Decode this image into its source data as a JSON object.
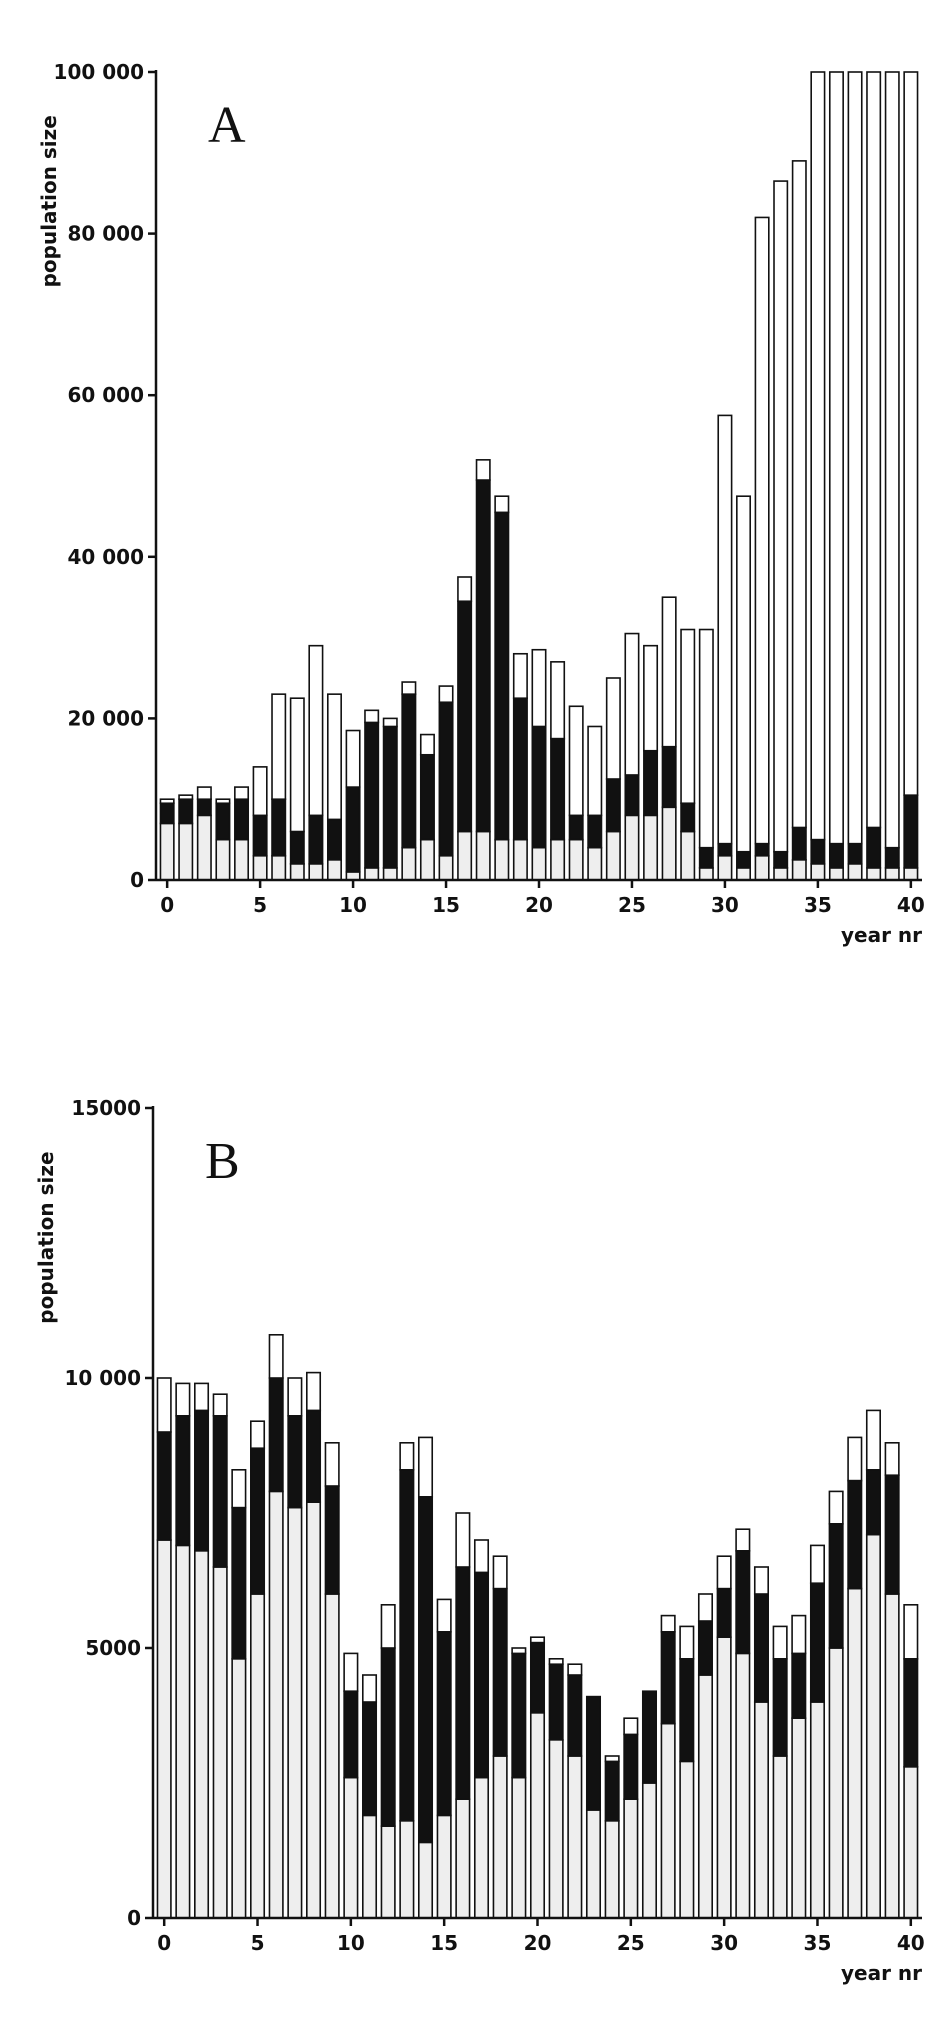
{
  "chart_data": [
    {
      "type": "bar",
      "stacked": true,
      "label": "A",
      "ylabel": "population size",
      "xlabel": "year nr",
      "x": [
        0,
        1,
        2,
        3,
        4,
        5,
        6,
        7,
        8,
        9,
        10,
        11,
        12,
        13,
        14,
        15,
        16,
        17,
        18,
        19,
        20,
        21,
        22,
        23,
        24,
        25,
        26,
        27,
        28,
        29,
        30,
        31,
        32,
        33,
        34,
        35,
        36,
        37,
        38,
        39,
        40
      ],
      "series": [
        {
          "color": "#eeeeee",
          "values": [
            7000,
            7000,
            8000,
            5000,
            5000,
            3000,
            3000,
            2000,
            2000,
            2500,
            1000,
            1500,
            1500,
            4000,
            5000,
            3000,
            6000,
            6000,
            5000,
            5000,
            4000,
            5000,
            5000,
            4000,
            6000,
            8000,
            8000,
            9000,
            6000,
            1500,
            3000,
            1500,
            3000,
            1500,
            2500,
            2000,
            1500,
            2000,
            1500,
            1500,
            1500
          ]
        },
        {
          "color": "#111111",
          "values": [
            2500,
            3000,
            2000,
            4500,
            5000,
            5000,
            7000,
            4000,
            6000,
            5000,
            10500,
            18000,
            17500,
            19000,
            10500,
            19000,
            28500,
            43500,
            40500,
            17500,
            15000,
            12500,
            3000,
            4000,
            6500,
            5000,
            8000,
            7500,
            3500,
            2500,
            1500,
            2000,
            1500,
            2000,
            4000,
            3000,
            3000,
            2500,
            5000,
            2500,
            9000
          ]
        },
        {
          "color": "#ffffff",
          "values": [
            500,
            500,
            1500,
            500,
            1500,
            6000,
            13000,
            16500,
            21000,
            15500,
            7000,
            1500,
            1000,
            1500,
            2500,
            2000,
            3000,
            2500,
            2000,
            5500,
            9500,
            9500,
            13500,
            11000,
            12500,
            17500,
            13000,
            18500,
            21500,
            27000,
            53000,
            44000,
            77500,
            83000,
            82500,
            95000,
            95500,
            95500,
            93500,
            96000,
            89500
          ]
        }
      ],
      "xlim": [
        -0.6,
        40.6
      ],
      "ylim": [
        0,
        100000
      ],
      "xticks": [
        0,
        5,
        10,
        15,
        20,
        25,
        30,
        35,
        40
      ],
      "yticks": [
        0,
        {
          "value": 20000,
          "label": "20 000"
        },
        {
          "value": 40000,
          "label": "40 000"
        },
        {
          "value": 60000,
          "label": "60 000"
        },
        {
          "value": 80000,
          "label": "80 000"
        },
        {
          "value": 100000,
          "label": "100 000"
        }
      ]
    },
    {
      "type": "bar",
      "stacked": true,
      "label": "B",
      "ylabel": "population size",
      "xlabel": "year nr",
      "x": [
        0,
        1,
        2,
        3,
        4,
        5,
        6,
        7,
        8,
        9,
        10,
        11,
        12,
        13,
        14,
        15,
        16,
        17,
        18,
        19,
        20,
        21,
        22,
        23,
        24,
        25,
        26,
        27,
        28,
        29,
        30,
        31,
        32,
        33,
        34,
        35,
        36,
        37,
        38,
        39,
        40
      ],
      "series": [
        {
          "color": "#eeeeee",
          "values": [
            7000,
            6900,
            6800,
            6500,
            4800,
            6000,
            7900,
            7600,
            7700,
            6000,
            2600,
            1900,
            1700,
            1800,
            1400,
            1900,
            2200,
            2600,
            3000,
            2600,
            3800,
            3300,
            3000,
            2000,
            1800,
            2200,
            2500,
            3600,
            2900,
            4500,
            5200,
            4900,
            4000,
            3000,
            3700,
            4000,
            5000,
            6100,
            7100,
            6000,
            2800
          ]
        },
        {
          "color": "#111111",
          "values": [
            2000,
            2400,
            2600,
            2800,
            2800,
            2700,
            2100,
            1700,
            1700,
            2000,
            1600,
            2100,
            3300,
            6500,
            6400,
            3400,
            4300,
            3800,
            3100,
            2300,
            1300,
            1400,
            1500,
            2100,
            1100,
            1200,
            1700,
            1700,
            1900,
            1000,
            900,
            1900,
            2000,
            1800,
            1200,
            2200,
            2300,
            2000,
            1200,
            2200,
            2000
          ]
        },
        {
          "color": "#ffffff",
          "values": [
            1000,
            600,
            500,
            400,
            700,
            500,
            800,
            700,
            700,
            800,
            700,
            500,
            800,
            500,
            1100,
            600,
            1000,
            600,
            600,
            100,
            100,
            100,
            200,
            0,
            100,
            300,
            0,
            300,
            600,
            500,
            600,
            400,
            500,
            600,
            700,
            700,
            600,
            800,
            1100,
            600,
            1000
          ]
        }
      ],
      "xlim": [
        -0.6,
        40.6
      ],
      "ylim": [
        0,
        15000
      ],
      "xticks": [
        0,
        5,
        10,
        15,
        20,
        25,
        30,
        35,
        40
      ],
      "yticks": [
        0,
        5000,
        {
          "value": 10000,
          "label": "10 000"
        },
        15000
      ]
    }
  ]
}
